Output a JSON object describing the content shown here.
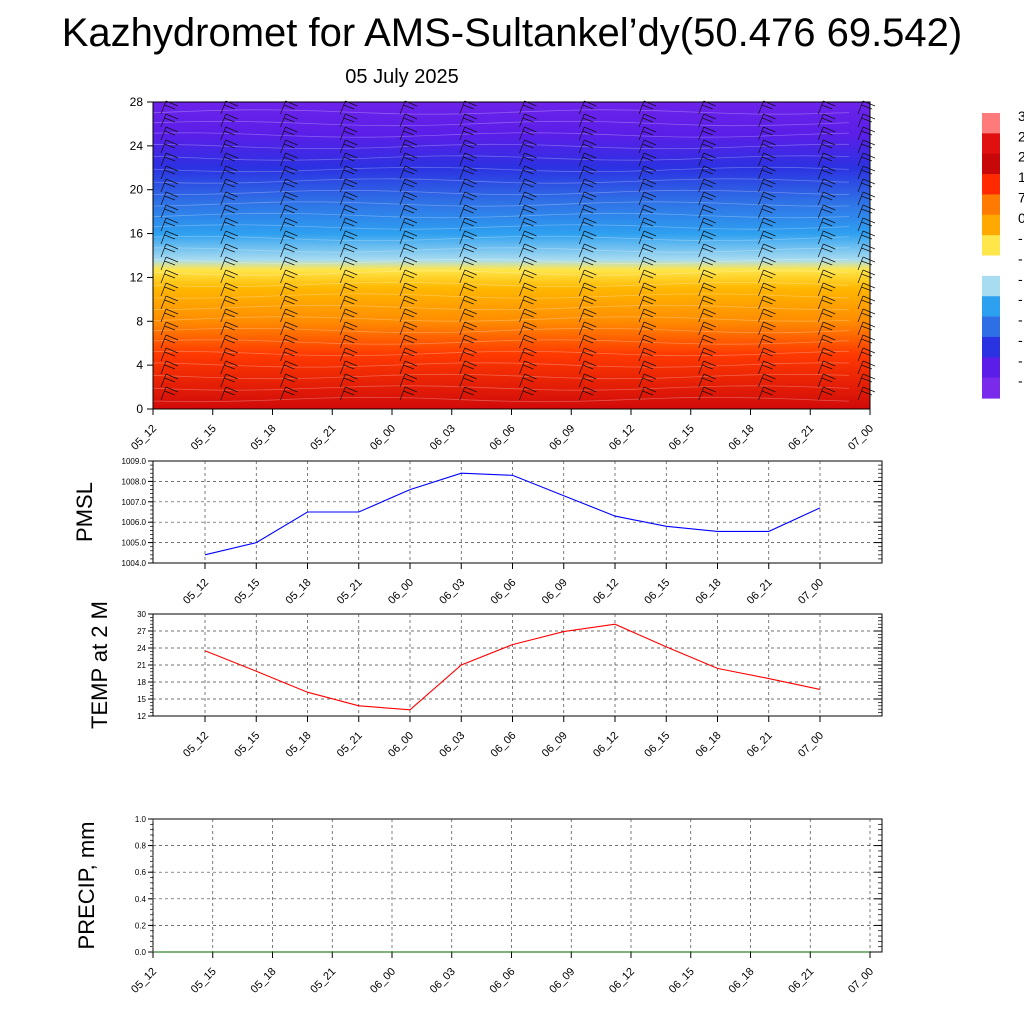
{
  "title": "Kazhydromet for AMS-Sultankel’dy(50.476 69.542)",
  "date": "05 July 2025",
  "chart_data": [
    {
      "type": "heatmap",
      "name": "cross-section",
      "x": [
        "05_12",
        "05_15",
        "05_18",
        "05_21",
        "06_00",
        "06_03",
        "06_06",
        "06_09",
        "06_12",
        "06_15",
        "06_18",
        "06_21",
        "07_00"
      ],
      "yticks": [
        "0",
        "4",
        "8",
        "12",
        "16",
        "20",
        "24",
        "28"
      ],
      "ylim": [
        0,
        28
      ],
      "colorbar_labels": [
        "3",
        "2",
        "2",
        "1",
        "7",
        "0",
        "-",
        "-",
        "-",
        "-",
        "-",
        "-",
        "-",
        "-"
      ],
      "color_stops": [
        {
          "y": 0,
          "color": "#d10a0a"
        },
        {
          "y": 5,
          "color": "#ff3a00"
        },
        {
          "y": 8,
          "color": "#ff8c00"
        },
        {
          "y": 11,
          "color": "#ffb700"
        },
        {
          "y": 12.7,
          "color": "#ffe64a"
        },
        {
          "y": 13.6,
          "color": "#a8dcf0"
        },
        {
          "y": 16,
          "color": "#2ea0f0"
        },
        {
          "y": 19,
          "color": "#2f6fe6"
        },
        {
          "y": 22,
          "color": "#2b32e2"
        },
        {
          "y": 25,
          "color": "#5a1ee8"
        },
        {
          "y": 28,
          "color": "#6d23ea"
        }
      ],
      "colorbar_colors": [
        "#ff7a7a",
        "#e01010",
        "#c80808",
        "#ff2a00",
        "#ff7a00",
        "#ffa800",
        "#ffe64a",
        "#ffffff",
        "#a8dcf0",
        "#2ea0f0",
        "#2f6fe6",
        "#2b32e2",
        "#5a1ee8",
        "#7a2aea"
      ]
    },
    {
      "type": "line",
      "name": "pmsl",
      "ylabel": "PMSL",
      "x": [
        "05_12",
        "05_15",
        "05_18",
        "05_21",
        "06_00",
        "06_03",
        "06_06",
        "06_09",
        "06_12",
        "06_15",
        "06_18",
        "06_21",
        "07_00"
      ],
      "values": [
        1004.4,
        1005.0,
        1006.5,
        1006.5,
        1007.6,
        1008.4,
        1008.3,
        1007.3,
        1006.3,
        1005.8,
        1005.55,
        1005.55,
        1006.7
      ],
      "yticks": [
        "1004.0",
        "1005.0",
        "1006.0",
        "1007.0",
        "1008.0",
        "1009.0"
      ],
      "ylim": [
        1004,
        1009
      ],
      "color": "#0000ff"
    },
    {
      "type": "line",
      "name": "temp2m",
      "ylabel": "TEMP at 2 M",
      "x": [
        "05_12",
        "05_15",
        "05_18",
        "05_21",
        "06_00",
        "06_03",
        "06_06",
        "06_09",
        "06_12",
        "06_15",
        "06_18",
        "06_21",
        "07_00"
      ],
      "values": [
        23.5,
        19.9,
        16.2,
        13.8,
        13.1,
        21.0,
        24.6,
        26.9,
        28.2,
        24.2,
        20.4,
        18.6,
        16.7
      ],
      "yticks": [
        "12",
        "15",
        "18",
        "21",
        "24",
        "27",
        "30"
      ],
      "ylim": [
        12,
        30
      ],
      "color": "#ff0000"
    },
    {
      "type": "line",
      "name": "precip",
      "ylabel": "PRECIP, mm",
      "x": [
        "05_12",
        "05_15",
        "05_18",
        "05_21",
        "06_00",
        "06_03",
        "06_06",
        "06_09",
        "06_12",
        "06_15",
        "06_18",
        "06_21",
        "07_00"
      ],
      "values": [
        0,
        0,
        0,
        0,
        0,
        0,
        0,
        0,
        0,
        0,
        0,
        0,
        0
      ],
      "yticks": [
        "0.0",
        "0.2",
        "0.4",
        "0.6",
        "0.8",
        "1.0"
      ],
      "ylim": [
        0,
        1
      ],
      "color": "#006400"
    }
  ]
}
